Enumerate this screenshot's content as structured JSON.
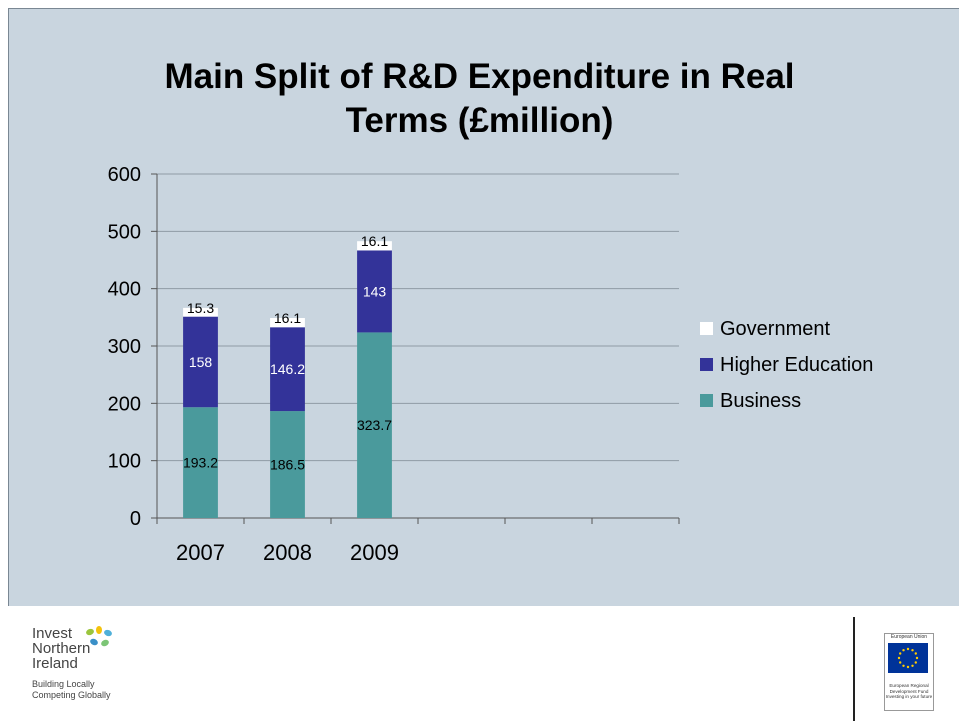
{
  "chart_data": {
    "type": "bar",
    "stacked": true,
    "title": "Main Split of R&D Expenditure in Real\nTerms (£million)",
    "categories": [
      "2007",
      "2008",
      "2009"
    ],
    "empty_category_slots": 3,
    "series": [
      {
        "name": "Business",
        "values": [
          193.2,
          186.5,
          323.7
        ],
        "labels": [
          "193.2",
          "186.5",
          "323.7"
        ],
        "color": "#4a9a9c"
      },
      {
        "name": "Higher Education",
        "values": [
          158,
          146.2,
          143
        ],
        "labels": [
          "158",
          "146.2",
          "143"
        ],
        "color": "#333399"
      },
      {
        "name": "Government",
        "values": [
          15.3,
          16.1,
          16.1
        ],
        "labels": [
          "15.3",
          "16.1",
          "16.1"
        ],
        "color": "#ffffff"
      }
    ],
    "legend_order": [
      "Government",
      "Higher Education",
      "Business"
    ],
    "legend_placement": "right",
    "ylim": [
      0,
      600
    ],
    "yticks": [
      0,
      100,
      200,
      300,
      400,
      500,
      600
    ],
    "grid": true,
    "xlabel": "",
    "ylabel": ""
  },
  "footer": {
    "brand_name": "Invest\nNorthern\nIreland",
    "brand_tagline": "Building Locally\nCompeting Globally",
    "eu_top": "European Union",
    "eu_bottom": "European Regional\nDevelopment Fund\nInvesting in your future"
  },
  "colors": {
    "background": "#c9d5df",
    "business": "#4a9a9c",
    "higher_education": "#333399",
    "government": "#ffffff",
    "eu_blue": "#003399",
    "eu_star": "#ffcc00"
  }
}
